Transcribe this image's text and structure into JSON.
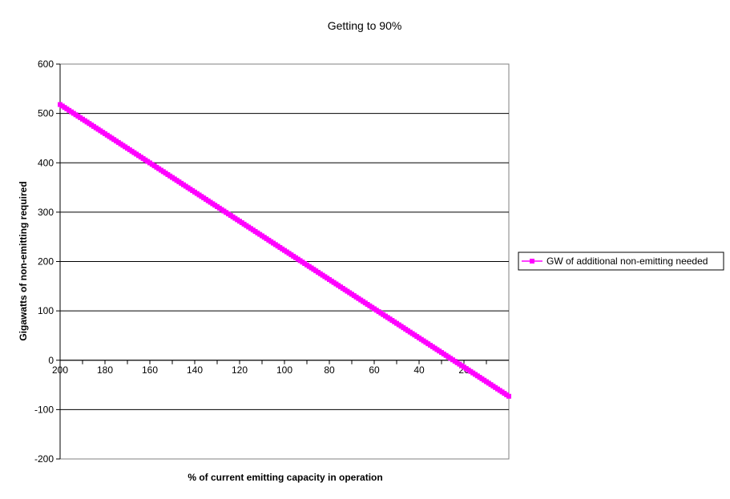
{
  "chart_data": {
    "type": "line",
    "title": "Getting to 90%",
    "xlabel": "% of current emitting capacity in operation",
    "ylabel": "Gigawatts of non-emitting required",
    "x_reversed": true,
    "xlim": [
      0,
      200
    ],
    "ylim": [
      -200,
      600
    ],
    "x_ticks": [
      200,
      180,
      160,
      140,
      120,
      100,
      80,
      60,
      40,
      20
    ],
    "y_ticks": [
      600,
      500,
      400,
      300,
      200,
      100,
      0,
      -100,
      -200
    ],
    "grid": "horizontal",
    "legend_position": "right",
    "series": [
      {
        "name": "GW of additional non-emitting needed",
        "color": "#FF00FF",
        "marker": "square",
        "x_start": 200,
        "x_end": 0,
        "x_step": 1,
        "y_at_x_start": 518,
        "y_at_x_end": -73
      }
    ]
  }
}
